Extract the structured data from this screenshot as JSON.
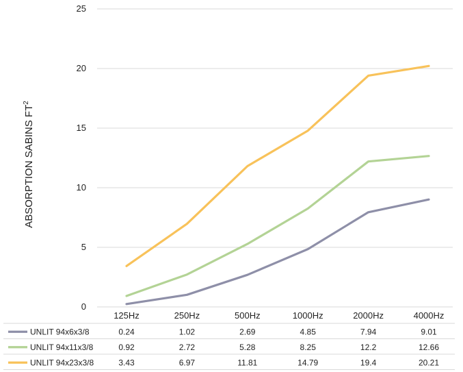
{
  "chart_data": {
    "type": "line",
    "title": "",
    "xlabel": "",
    "ylabel": "ABSORPTION SABINS FT",
    "ylabel_superscript": "2",
    "ylim": [
      0,
      25
    ],
    "yticks": [
      "0",
      "5",
      "10",
      "15",
      "20",
      "25"
    ],
    "grid": true,
    "legend": "data-table-below",
    "categories": [
      "125Hz",
      "250Hz",
      "500Hz",
      "1000Hz",
      "2000Hz",
      "4000Hz"
    ],
    "series": [
      {
        "name": "UNLIT 94x6x3/8",
        "color": "#8e8fa8",
        "values": [
          0.24,
          1.02,
          2.69,
          4.85,
          7.94,
          9.01
        ],
        "labels": [
          "0.24",
          "1.02",
          "2.69",
          "4.85",
          "7.94",
          "9.01"
        ]
      },
      {
        "name": "UNLIT 94x11x3/8",
        "color": "#b3d395",
        "values": [
          0.92,
          2.72,
          5.28,
          8.25,
          12.2,
          12.66
        ],
        "labels": [
          "0.92",
          "2.72",
          "5.28",
          "8.25",
          "12.2",
          "12.66"
        ]
      },
      {
        "name": "UNLIT 94x23x3/8",
        "color": "#f8c25a",
        "values": [
          3.43,
          6.97,
          11.81,
          14.79,
          19.4,
          20.21
        ],
        "labels": [
          "3.43",
          "6.97",
          "11.81",
          "14.79",
          "19.4",
          "20.21"
        ]
      }
    ]
  }
}
